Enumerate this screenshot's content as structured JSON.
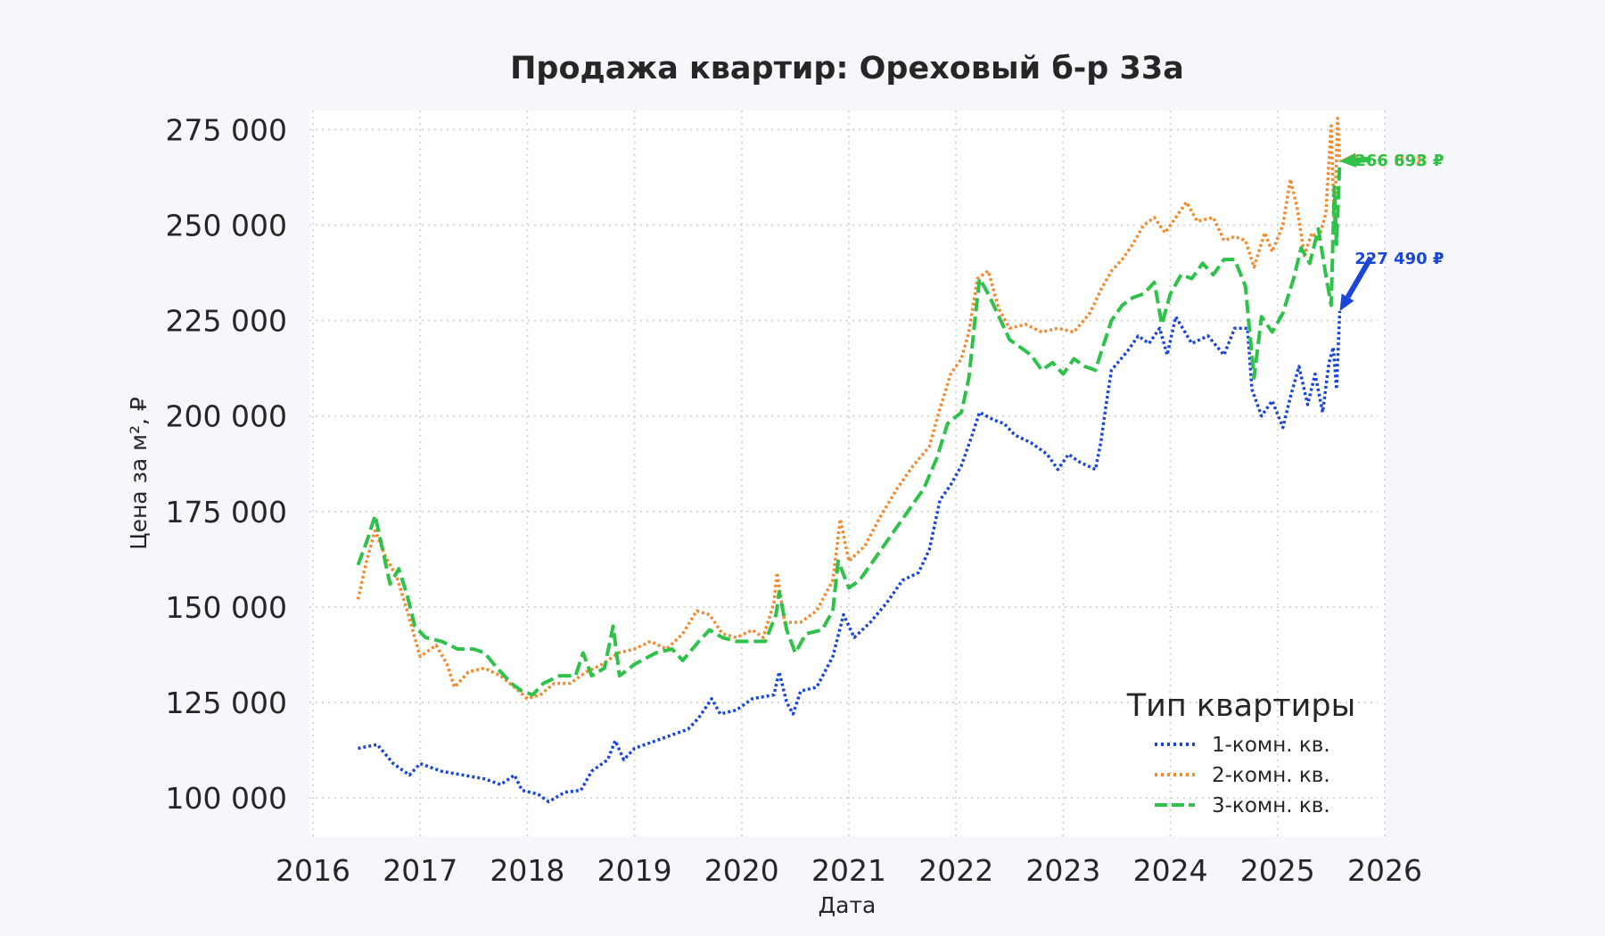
{
  "chart_data": {
    "type": "line",
    "title": "Продажа квартир: Ореховый б-р 33а",
    "xlabel": "Дата",
    "ylabel": "Цена за м², ₽",
    "xlim": [
      2016.0,
      2026.0
    ],
    "ylim": [
      90000,
      280000
    ],
    "x_ticks": [
      2016,
      2017,
      2018,
      2019,
      2020,
      2021,
      2022,
      2023,
      2024,
      2025,
      2026
    ],
    "x_tick_labels": [
      "2016",
      "2017",
      "2018",
      "2019",
      "2020",
      "2021",
      "2022",
      "2023",
      "2024",
      "2025",
      "2026"
    ],
    "y_ticks": [
      100000,
      125000,
      150000,
      175000,
      200000,
      225000,
      250000,
      275000
    ],
    "y_tick_labels": [
      "100 000",
      "125 000",
      "150 000",
      "175 000",
      "200 000",
      "225 000",
      "250 000",
      "275 000"
    ],
    "grid": true,
    "legend_title": "Тип квартиры",
    "legend_position": "bottom-right",
    "series": [
      {
        "name": "1-комн. кв.",
        "color": "#1946d8",
        "dash": "dotted",
        "points": [
          [
            2016.42,
            113000
          ],
          [
            2016.6,
            114000
          ],
          [
            2016.75,
            109000
          ],
          [
            2016.9,
            106000
          ],
          [
            2017.0,
            109000
          ],
          [
            2017.2,
            107000
          ],
          [
            2017.4,
            106000
          ],
          [
            2017.6,
            105000
          ],
          [
            2017.75,
            103500
          ],
          [
            2017.88,
            106000
          ],
          [
            2017.95,
            102000
          ],
          [
            2018.1,
            101000
          ],
          [
            2018.2,
            99000
          ],
          [
            2018.35,
            101500
          ],
          [
            2018.5,
            102000
          ],
          [
            2018.6,
            107000
          ],
          [
            2018.75,
            110000
          ],
          [
            2018.82,
            115000
          ],
          [
            2018.9,
            110000
          ],
          [
            2019.0,
            113000
          ],
          [
            2019.2,
            115000
          ],
          [
            2019.4,
            117000
          ],
          [
            2019.5,
            118000
          ],
          [
            2019.6,
            121000
          ],
          [
            2019.72,
            126000
          ],
          [
            2019.8,
            122000
          ],
          [
            2019.95,
            123000
          ],
          [
            2020.1,
            126000
          ],
          [
            2020.3,
            127000
          ],
          [
            2020.35,
            133000
          ],
          [
            2020.42,
            125000
          ],
          [
            2020.48,
            122000
          ],
          [
            2020.55,
            128000
          ],
          [
            2020.7,
            129000
          ],
          [
            2020.85,
            137000
          ],
          [
            2020.95,
            148000
          ],
          [
            2021.05,
            142000
          ],
          [
            2021.2,
            146000
          ],
          [
            2021.35,
            151000
          ],
          [
            2021.5,
            157000
          ],
          [
            2021.65,
            159000
          ],
          [
            2021.75,
            165000
          ],
          [
            2021.85,
            178000
          ],
          [
            2021.95,
            182000
          ],
          [
            2022.05,
            187000
          ],
          [
            2022.15,
            195000
          ],
          [
            2022.22,
            201000
          ],
          [
            2022.35,
            199000
          ],
          [
            2022.45,
            198000
          ],
          [
            2022.55,
            195000
          ],
          [
            2022.7,
            193000
          ],
          [
            2022.85,
            190000
          ],
          [
            2022.95,
            186000
          ],
          [
            2023.05,
            190000
          ],
          [
            2023.15,
            188000
          ],
          [
            2023.3,
            186000
          ],
          [
            2023.35,
            193000
          ],
          [
            2023.4,
            203000
          ],
          [
            2023.45,
            212000
          ],
          [
            2023.6,
            217000
          ],
          [
            2023.7,
            221000
          ],
          [
            2023.8,
            219000
          ],
          [
            2023.9,
            223000
          ],
          [
            2023.97,
            216000
          ],
          [
            2024.05,
            226000
          ],
          [
            2024.2,
            219000
          ],
          [
            2024.35,
            221000
          ],
          [
            2024.5,
            216000
          ],
          [
            2024.6,
            223000
          ],
          [
            2024.72,
            223000
          ],
          [
            2024.76,
            207000
          ],
          [
            2024.85,
            200000
          ],
          [
            2024.95,
            204000
          ],
          [
            2025.05,
            197000
          ],
          [
            2025.12,
            205000
          ],
          [
            2025.2,
            213000
          ],
          [
            2025.28,
            203000
          ],
          [
            2025.35,
            211000
          ],
          [
            2025.42,
            201000
          ],
          [
            2025.48,
            214000
          ],
          [
            2025.52,
            218000
          ],
          [
            2025.55,
            207000
          ],
          [
            2025.58,
            227490
          ]
        ]
      },
      {
        "name": "2-комн. кв.",
        "color": "#f28a2e",
        "dash": "dotted",
        "points": [
          [
            2016.42,
            152000
          ],
          [
            2016.5,
            162000
          ],
          [
            2016.58,
            170000
          ],
          [
            2016.68,
            163000
          ],
          [
            2016.78,
            158000
          ],
          [
            2016.88,
            149000
          ],
          [
            2016.95,
            142000
          ],
          [
            2017.0,
            137000
          ],
          [
            2017.15,
            140000
          ],
          [
            2017.25,
            135000
          ],
          [
            2017.32,
            129000
          ],
          [
            2017.45,
            133000
          ],
          [
            2017.6,
            134000
          ],
          [
            2017.75,
            132000
          ],
          [
            2017.88,
            129000
          ],
          [
            2018.0,
            126000
          ],
          [
            2018.12,
            127000
          ],
          [
            2018.25,
            130000
          ],
          [
            2018.4,
            130000
          ],
          [
            2018.55,
            133000
          ],
          [
            2018.7,
            135000
          ],
          [
            2018.85,
            138000
          ],
          [
            2019.0,
            139000
          ],
          [
            2019.15,
            141000
          ],
          [
            2019.3,
            139000
          ],
          [
            2019.45,
            143000
          ],
          [
            2019.58,
            149000
          ],
          [
            2019.7,
            148000
          ],
          [
            2019.82,
            143000
          ],
          [
            2019.95,
            142000
          ],
          [
            2020.1,
            144000
          ],
          [
            2020.2,
            142000
          ],
          [
            2020.3,
            151000
          ],
          [
            2020.33,
            159000
          ],
          [
            2020.4,
            146000
          ],
          [
            2020.55,
            146000
          ],
          [
            2020.7,
            149000
          ],
          [
            2020.85,
            157000
          ],
          [
            2020.92,
            173000
          ],
          [
            2021.0,
            162000
          ],
          [
            2021.15,
            166000
          ],
          [
            2021.3,
            174000
          ],
          [
            2021.45,
            181000
          ],
          [
            2021.6,
            187000
          ],
          [
            2021.75,
            192000
          ],
          [
            2021.85,
            202000
          ],
          [
            2021.95,
            211000
          ],
          [
            2022.05,
            215000
          ],
          [
            2022.12,
            222000
          ],
          [
            2022.2,
            236000
          ],
          [
            2022.3,
            238000
          ],
          [
            2022.4,
            228000
          ],
          [
            2022.5,
            223000
          ],
          [
            2022.65,
            224000
          ],
          [
            2022.8,
            222000
          ],
          [
            2022.95,
            223000
          ],
          [
            2023.1,
            222000
          ],
          [
            2023.25,
            227000
          ],
          [
            2023.35,
            233000
          ],
          [
            2023.45,
            238000
          ],
          [
            2023.55,
            241000
          ],
          [
            2023.65,
            245000
          ],
          [
            2023.75,
            250000
          ],
          [
            2023.85,
            252000
          ],
          [
            2023.95,
            248000
          ],
          [
            2024.05,
            252000
          ],
          [
            2024.15,
            256000
          ],
          [
            2024.25,
            251000
          ],
          [
            2024.4,
            252000
          ],
          [
            2024.5,
            246000
          ],
          [
            2024.6,
            247000
          ],
          [
            2024.7,
            246000
          ],
          [
            2024.78,
            239000
          ],
          [
            2024.88,
            248000
          ],
          [
            2024.95,
            243000
          ],
          [
            2025.05,
            250000
          ],
          [
            2025.12,
            262000
          ],
          [
            2025.18,
            255000
          ],
          [
            2025.25,
            242000
          ],
          [
            2025.32,
            248000
          ],
          [
            2025.38,
            246000
          ],
          [
            2025.45,
            253000
          ],
          [
            2025.5,
            276000
          ],
          [
            2025.53,
            249000
          ],
          [
            2025.56,
            278000
          ],
          [
            2025.58,
            266898
          ]
        ]
      },
      {
        "name": "3-комн. кв.",
        "color": "#2ec24a",
        "dash": "dashed",
        "points": [
          [
            2016.42,
            161000
          ],
          [
            2016.5,
            167000
          ],
          [
            2016.58,
            174000
          ],
          [
            2016.65,
            165000
          ],
          [
            2016.72,
            156000
          ],
          [
            2016.8,
            160000
          ],
          [
            2016.88,
            153000
          ],
          [
            2016.95,
            145000
          ],
          [
            2017.05,
            142000
          ],
          [
            2017.2,
            141000
          ],
          [
            2017.35,
            139000
          ],
          [
            2017.5,
            139000
          ],
          [
            2017.6,
            138000
          ],
          [
            2017.72,
            134000
          ],
          [
            2017.85,
            130000
          ],
          [
            2017.95,
            128000
          ],
          [
            2018.05,
            127000
          ],
          [
            2018.15,
            130000
          ],
          [
            2018.3,
            132000
          ],
          [
            2018.45,
            132000
          ],
          [
            2018.52,
            138000
          ],
          [
            2018.6,
            132000
          ],
          [
            2018.72,
            134000
          ],
          [
            2018.8,
            145000
          ],
          [
            2018.86,
            132000
          ],
          [
            2019.0,
            135000
          ],
          [
            2019.2,
            138000
          ],
          [
            2019.35,
            139000
          ],
          [
            2019.45,
            136000
          ],
          [
            2019.6,
            141000
          ],
          [
            2019.7,
            144000
          ],
          [
            2019.82,
            142000
          ],
          [
            2019.95,
            141000
          ],
          [
            2020.1,
            141000
          ],
          [
            2020.22,
            141000
          ],
          [
            2020.32,
            148000
          ],
          [
            2020.35,
            154000
          ],
          [
            2020.42,
            144000
          ],
          [
            2020.5,
            138000
          ],
          [
            2020.6,
            143000
          ],
          [
            2020.75,
            144000
          ],
          [
            2020.85,
            149000
          ],
          [
            2020.9,
            162000
          ],
          [
            2021.0,
            155000
          ],
          [
            2021.1,
            157000
          ],
          [
            2021.25,
            163000
          ],
          [
            2021.4,
            169000
          ],
          [
            2021.55,
            175000
          ],
          [
            2021.7,
            181000
          ],
          [
            2021.82,
            189000
          ],
          [
            2021.92,
            198000
          ],
          [
            2022.05,
            201000
          ],
          [
            2022.12,
            210000
          ],
          [
            2022.18,
            226000
          ],
          [
            2022.22,
            236000
          ],
          [
            2022.3,
            232000
          ],
          [
            2022.4,
            226000
          ],
          [
            2022.5,
            220000
          ],
          [
            2022.6,
            218000
          ],
          [
            2022.7,
            216000
          ],
          [
            2022.8,
            212000
          ],
          [
            2022.9,
            214000
          ],
          [
            2023.0,
            211000
          ],
          [
            2023.1,
            215000
          ],
          [
            2023.2,
            213000
          ],
          [
            2023.3,
            212000
          ],
          [
            2023.38,
            219000
          ],
          [
            2023.45,
            225000
          ],
          [
            2023.55,
            229000
          ],
          [
            2023.65,
            231000
          ],
          [
            2023.75,
            232000
          ],
          [
            2023.85,
            235000
          ],
          [
            2023.92,
            224000
          ],
          [
            2024.0,
            232000
          ],
          [
            2024.1,
            237000
          ],
          [
            2024.2,
            236000
          ],
          [
            2024.3,
            240000
          ],
          [
            2024.4,
            237000
          ],
          [
            2024.5,
            241000
          ],
          [
            2024.6,
            241000
          ],
          [
            2024.7,
            234000
          ],
          [
            2024.78,
            210000
          ],
          [
            2024.85,
            226000
          ],
          [
            2024.95,
            222000
          ],
          [
            2025.05,
            227000
          ],
          [
            2025.15,
            236000
          ],
          [
            2025.22,
            244000
          ],
          [
            2025.3,
            240000
          ],
          [
            2025.38,
            249000
          ],
          [
            2025.45,
            237000
          ],
          [
            2025.5,
            229000
          ],
          [
            2025.53,
            260000
          ],
          [
            2025.55,
            245000
          ],
          [
            2025.58,
            266693
          ]
        ]
      }
    ],
    "annotations": [
      {
        "text": "227 490 ₽",
        "series": "1-комн. кв.",
        "color": "#1946d8",
        "x": 2025.58,
        "y": 227490,
        "text_x": 2025.87,
        "text_y": 241500
      },
      {
        "text": "266 898 ₽",
        "series": "2-комн. кв.",
        "color": "#f28a2e",
        "x": 2025.58,
        "y": 266898,
        "text_x": 2025.87,
        "text_y": 267200
      },
      {
        "text": "266 693 ₽",
        "series": "3-комн. кв.",
        "color": "#2ec24a",
        "x": 2025.58,
        "y": 266693,
        "text_x": 2025.87,
        "text_y": 267200
      }
    ]
  }
}
